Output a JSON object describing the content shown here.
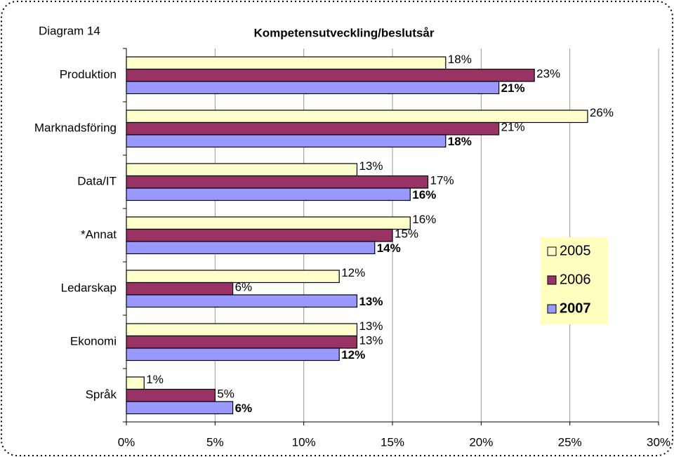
{
  "chart_data": {
    "type": "barh",
    "title": "Kompetensutveckling/beslutsår",
    "annotation": "Diagram 14",
    "categories": [
      "Produktion",
      "Marknadsföring",
      "Data/IT",
      "*Annat",
      "Ledarskap",
      "Ekonomi",
      "Språk"
    ],
    "series": [
      {
        "name": "2005",
        "color": "#ffffcc",
        "values": [
          18,
          26,
          13,
          16,
          12,
          13,
          1
        ],
        "value_labels": [
          "18%",
          "26%",
          "13%",
          "16%",
          "12%",
          "13%",
          "1%"
        ]
      },
      {
        "name": "2006",
        "color": "#993366",
        "values": [
          23,
          21,
          17,
          15,
          6,
          13,
          5
        ],
        "value_labels": [
          "23%",
          "21%",
          "17%",
          "15%",
          "6%",
          "13%",
          "5%"
        ]
      },
      {
        "name": "2007",
        "color": "#9999ff",
        "values": [
          21,
          18,
          16,
          14,
          13,
          12,
          6
        ],
        "value_labels": [
          "21%",
          "18%",
          "16%",
          "14%",
          "13%",
          "12%",
          "6%"
        ]
      }
    ],
    "xlim": [
      0,
      30
    ],
    "xticks": [
      {
        "value": 0,
        "label": "0%"
      },
      {
        "value": 5,
        "label": "5%"
      },
      {
        "value": 10,
        "label": "10%"
      },
      {
        "value": 15,
        "label": "15%"
      },
      {
        "value": 20,
        "label": "20%"
      },
      {
        "value": 25,
        "label": "25%"
      },
      {
        "value": 30,
        "label": "30%"
      }
    ],
    "grid": true,
    "legend": "right"
  }
}
